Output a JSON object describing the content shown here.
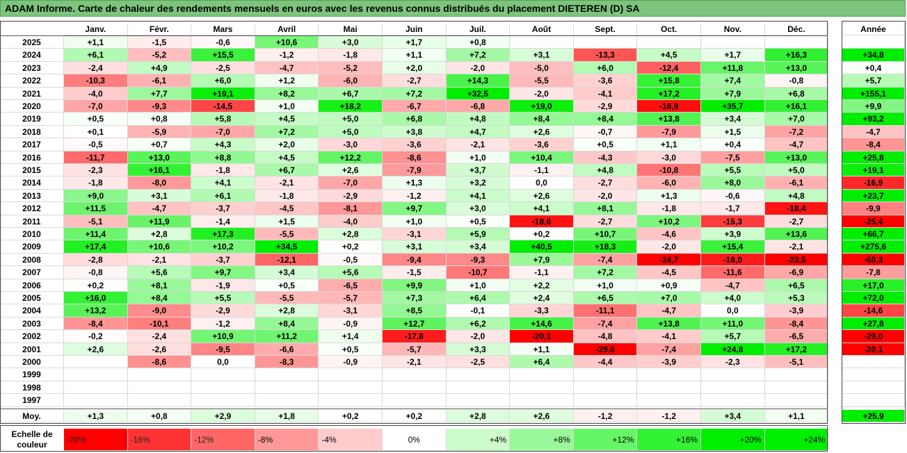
{
  "title": "ADAM Informe. Carte de chaleur des rendements mensuels en euros avec les revenus connus distribués du placement DIETEREN (D) SA",
  "chart_data": {
    "type": "heatmap",
    "columns": [
      "Janv.",
      "Févr.",
      "Mars",
      "Avril",
      "Mai",
      "Juin",
      "Juil.",
      "Août",
      "Sept.",
      "Oct.",
      "Nov.",
      "Déc."
    ],
    "year_header": "Année",
    "rows": [
      {
        "year": "2025",
        "values": [
          "+1,1",
          "-1,5",
          "-0,6",
          "+10,6",
          "+3,0",
          "+1,7",
          "+0,8",
          "",
          "",
          "",
          "",
          ""
        ],
        "annual": ""
      },
      {
        "year": "2024",
        "values": [
          "+6,1",
          "-5,2",
          "+15,5",
          "-1,2",
          "-1,8",
          "+1,1",
          "+7,2",
          "+3,1",
          "-13,3",
          "+4,5",
          "+1,7",
          "+16,3"
        ],
        "annual": "+34,8"
      },
      {
        "year": "2023",
        "values": [
          "-2,4",
          "+4,9",
          "-2,5",
          "-4,7",
          "-5,2",
          "+2,0",
          "-2,0",
          "-5,0",
          "+6,0",
          "-12,4",
          "+11,8",
          "+13,0"
        ],
        "annual": "+0,4"
      },
      {
        "year": "2022",
        "values": [
          "-10,3",
          "-6,1",
          "+6,0",
          "+1,2",
          "-6,0",
          "-2,7",
          "+14,3",
          "-5,5",
          "-3,6",
          "+15,8",
          "+7,4",
          "-0,8"
        ],
        "annual": "+5,7"
      },
      {
        "year": "2021",
        "values": [
          "-4,0",
          "+7,7",
          "+19,1",
          "+8,2",
          "+6,7",
          "+7,2",
          "+32,5",
          "-2,0",
          "-4,1",
          "+17,2",
          "+7,9",
          "+6,8"
        ],
        "annual": "+155,1"
      },
      {
        "year": "2020",
        "values": [
          "-7,0",
          "-9,3",
          "-14,5",
          "+1,0",
          "+18,2",
          "-6,7",
          "-6,8",
          "+19,0",
          "-2,9",
          "-18,9",
          "+35,7",
          "+16,1"
        ],
        "annual": "+9,9"
      },
      {
        "year": "2019",
        "values": [
          "+0,5",
          "+0,8",
          "+5,8",
          "+4,5",
          "+5,0",
          "+6,8",
          "+4,8",
          "+8,4",
          "+8,4",
          "+13,8",
          "+3,4",
          "+7,0"
        ],
        "annual": "+93,2"
      },
      {
        "year": "2018",
        "values": [
          "+0,1",
          "-5,9",
          "-7,0",
          "+7,2",
          "+5,0",
          "+3,8",
          "+4,7",
          "+2,6",
          "-0,7",
          "-7,9",
          "+1,5",
          "-7,2"
        ],
        "annual": "-4,7"
      },
      {
        "year": "2017",
        "values": [
          "-0,5",
          "+0,7",
          "+4,3",
          "+2,0",
          "-3,0",
          "-3,6",
          "-2,1",
          "-3,6",
          "+0,5",
          "+1,1",
          "+0,4",
          "-4,7"
        ],
        "annual": "-8,4"
      },
      {
        "year": "2016",
        "values": [
          "-11,7",
          "+13,0",
          "+8,8",
          "+4,5",
          "+12,2",
          "-8,6",
          "+1,0",
          "+10,4",
          "-4,3",
          "-3,0",
          "-7,5",
          "+13,0"
        ],
        "annual": "+25,8"
      },
      {
        "year": "2015",
        "values": [
          "-2,3",
          "+16,1",
          "-1,8",
          "+6,7",
          "+2,6",
          "-7,9",
          "+3,7",
          "-1,1",
          "+4,8",
          "-10,8",
          "+5,5",
          "+5,0"
        ],
        "annual": "+19,1"
      },
      {
        "year": "2014",
        "values": [
          "-1,8",
          "-8,0",
          "+4,1",
          "-2,1",
          "-7,0",
          "+1,3",
          "+3,2",
          "0,0",
          "-2,7",
          "-6,0",
          "+8,0",
          "-6,1"
        ],
        "annual": "-16,9"
      },
      {
        "year": "2013",
        "values": [
          "+9,0",
          "+3,1",
          "+6,1",
          "-1,8",
          "-2,9",
          "-1,2",
          "+4,1",
          "+2,6",
          "-2,0",
          "+1,3",
          "-0,6",
          "+4,8"
        ],
        "annual": "+23,7"
      },
      {
        "year": "2012",
        "values": [
          "+11,5",
          "-4,7",
          "-3,7",
          "-4,5",
          "-8,1",
          "+9,7",
          "+3,0",
          "+4,1",
          "+8,1",
          "-1,8",
          "-1,7",
          "-18,4"
        ],
        "annual": "-9,9"
      },
      {
        "year": "2011",
        "values": [
          "-5,1",
          "+11,9",
          "-1,4",
          "+1,5",
          "-4,0",
          "+1,0",
          "+0,5",
          "-18,6",
          "-2,7",
          "+10,2",
          "-15,3",
          "-2,7"
        ],
        "annual": "-25,4"
      },
      {
        "year": "2010",
        "values": [
          "+11,4",
          "+2,8",
          "+17,3",
          "-5,5",
          "+2,8",
          "-3,1",
          "+5,9",
          "+0,2",
          "+10,7",
          "-4,6",
          "+3,9",
          "+13,6"
        ],
        "annual": "+66,7"
      },
      {
        "year": "2009",
        "values": [
          "+17,4",
          "+10,6",
          "+10,2",
          "+34,5",
          "+0,2",
          "+3,1",
          "+3,4",
          "+40,5",
          "+18,3",
          "-2,0",
          "+15,4",
          "-2,1"
        ],
        "annual": "+275,6"
      },
      {
        "year": "2008",
        "values": [
          "-2,8",
          "-2,1",
          "-3,7",
          "-12,1",
          "-0,5",
          "-9,4",
          "-9,3",
          "+7,9",
          "-7,4",
          "-24,7",
          "-18,0",
          "-23,5"
        ],
        "annual": "-68,3"
      },
      {
        "year": "2007",
        "values": [
          "-0,8",
          "+5,6",
          "+9,7",
          "+3,4",
          "+5,6",
          "-1,5",
          "-10,7",
          "-1,1",
          "+7,2",
          "-4,5",
          "-11,6",
          "-6,9"
        ],
        "annual": "-7,8"
      },
      {
        "year": "2006",
        "values": [
          "+0,2",
          "+8,1",
          "-1,9",
          "+0,5",
          "-6,5",
          "+9,9",
          "+1,0",
          "+2,2",
          "+1,0",
          "+0,9",
          "-4,7",
          "+6,5"
        ],
        "annual": "+17,0"
      },
      {
        "year": "2005",
        "values": [
          "+16,0",
          "+8,4",
          "+5,5",
          "-5,5",
          "-5,7",
          "+7,3",
          "+6,4",
          "+2,4",
          "+6,5",
          "+7,0",
          "+4,0",
          "+5,3"
        ],
        "annual": "+72,0"
      },
      {
        "year": "2004",
        "values": [
          "+13,2",
          "-9,0",
          "-2,9",
          "+2,8",
          "-3,1",
          "+8,5",
          "-0,1",
          "-3,3",
          "-11,1",
          "-4,7",
          "0,0",
          "-3,9"
        ],
        "annual": "-14,6"
      },
      {
        "year": "2003",
        "values": [
          "-8,4",
          "-10,1",
          "-1,2",
          "+8,4",
          "-0,9",
          "+12,7",
          "+6,2",
          "+14,6",
          "-7,4",
          "+13,8",
          "+11,0",
          "-8,4"
        ],
        "annual": "+27,8"
      },
      {
        "year": "2002",
        "values": [
          "-0,2",
          "-2,4",
          "+10,9",
          "+11,2",
          "+1,4",
          "-17,8",
          "-2,0",
          "-20,1",
          "-4,8",
          "-4,1",
          "+5,7",
          "-6,5"
        ],
        "annual": "-29,0"
      },
      {
        "year": "2001",
        "values": [
          "+2,6",
          "-2,6",
          "-9,5",
          "-6,6",
          "+0,5",
          "-5,7",
          "+3,3",
          "+1,1",
          "-29,6",
          "-7,4",
          "+24,8",
          "+17,2"
        ],
        "annual": "-20,1"
      },
      {
        "year": "2000",
        "values": [
          "",
          "-8,6",
          "0,0",
          "-8,3",
          "-0,9",
          "-2,1",
          "-2,5",
          "+6,4",
          "-4,4",
          "-3,9",
          "-2,3",
          "-5,1"
        ],
        "annual": ""
      },
      {
        "year": "1999",
        "values": [
          "",
          "",
          "",
          "",
          "",
          "",
          "",
          "",
          "",
          "",
          "",
          ""
        ],
        "annual": ""
      },
      {
        "year": "1998",
        "values": [
          "",
          "",
          "",
          "",
          "",
          "",
          "",
          "",
          "",
          "",
          "",
          ""
        ],
        "annual": ""
      },
      {
        "year": "1997",
        "values": [
          "",
          "",
          "",
          "",
          "",
          "",
          "",
          "",
          "",
          "",
          "",
          ""
        ],
        "annual": ""
      }
    ],
    "average": {
      "label": "Moy.",
      "values": [
        "+1,3",
        "+0,8",
        "+2,9",
        "+1,8",
        "+0,2",
        "+0,2",
        "+2,8",
        "+2,6",
        "-1,2",
        "-1,2",
        "+3,4",
        "+1,1"
      ],
      "annual": "+25,9"
    },
    "scale": {
      "label_line1": "Echelle de",
      "label_line2": "couleur",
      "items": [
        {
          "text": "-20%",
          "value": -20
        },
        {
          "text": "-16%",
          "value": -16
        },
        {
          "text": "-12%",
          "value": -12
        },
        {
          "text": "-8%",
          "value": -8
        },
        {
          "text": "-4%",
          "value": -4
        },
        {
          "text": "0%",
          "value": 0
        },
        {
          "text": "+4%",
          "value": 4
        },
        {
          "text": "+8%",
          "value": 8
        },
        {
          "text": "+12%",
          "value": 12
        },
        {
          "text": "+16%",
          "value": 16
        },
        {
          "text": "+20%",
          "value": 20
        },
        {
          "text": "+24%",
          "value": 24
        }
      ]
    },
    "colors": {
      "negative": "#ff0000",
      "neutral": "#ffffff",
      "positive": "#00ee00"
    }
  }
}
